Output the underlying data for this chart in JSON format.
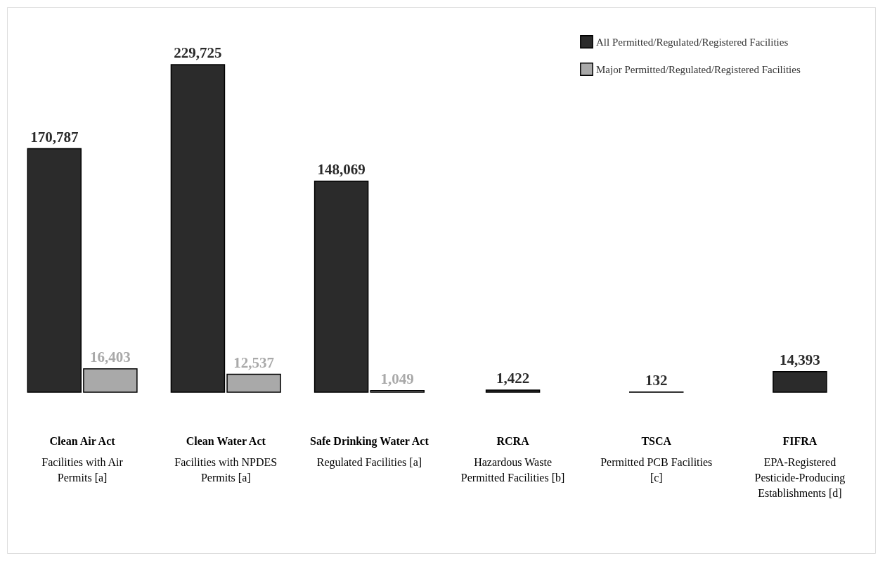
{
  "chart_data": {
    "type": "bar",
    "categories": [
      "Clean Air Act",
      "Clean Water Act",
      "Safe Drinking Water Act",
      "RCRA",
      "TSCA",
      "FIFRA"
    ],
    "annotations": [
      "Facilities with Air Permits [a]",
      "Facilities with NPDES Permits [a]",
      "Regulated Facilities [a]",
      "Hazardous Waste Permitted Facilities [b]",
      "Permitted PCB Facilities [c]",
      "EPA-Registered Pesticide-Producing Establishments [d]"
    ],
    "series": [
      {
        "name": "All Permitted/Regulated/Registered Facilities",
        "color": "#2b2b2b",
        "values": [
          170787,
          229725,
          148069,
          1422,
          132,
          14393
        ],
        "value_labels": [
          "170,787",
          "229,725",
          "148,069",
          "1,422",
          "132",
          "14,393"
        ]
      },
      {
        "name": "Major Permitted/Regulated/Registered Facilities",
        "color": "#a9a9a9",
        "values": [
          16403,
          12537,
          1049,
          null,
          null,
          null
        ],
        "value_labels": [
          "16,403",
          "12,537",
          "1,049",
          null,
          null,
          null
        ]
      }
    ],
    "legend": "top right"
  }
}
